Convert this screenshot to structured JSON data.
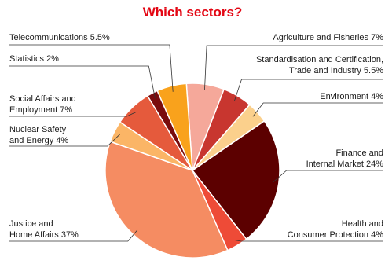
{
  "chart_data": {
    "type": "pie",
    "title": "Which sectors?",
    "title_color": "#e30613",
    "slices": [
      {
        "label": "Agriculture and Fisheries 7%",
        "value": 7,
        "color": "#f5a89a"
      },
      {
        "label": "Standardisation and Certification,\nTrade and Industry 5.5%",
        "value": 5.5,
        "color": "#c8362f"
      },
      {
        "label": "Environment 4%",
        "value": 4,
        "color": "#fbd08c"
      },
      {
        "label": "Finance and\nInternal Market 24%",
        "value": 24,
        "color": "#5c0000"
      },
      {
        "label": "Health and\nConsumer Protection 4%",
        "value": 4,
        "color": "#ee4b37"
      },
      {
        "label": "Justice and\nHome Affairs 37%",
        "value": 37,
        "color": "#f58c62"
      },
      {
        "label": "Nuclear Safety\nand Energy 4%",
        "value": 4,
        "color": "#fbb566"
      },
      {
        "label": "Social Affairs and\nEmployment 7%",
        "value": 7,
        "color": "#e55a3c"
      },
      {
        "label": "Statistics 2%",
        "value": 2,
        "color": "#7a0c0c"
      },
      {
        "label": "Telecommunications 5.5%",
        "value": 5.5,
        "color": "#f9a21c"
      }
    ],
    "legend": "none"
  }
}
